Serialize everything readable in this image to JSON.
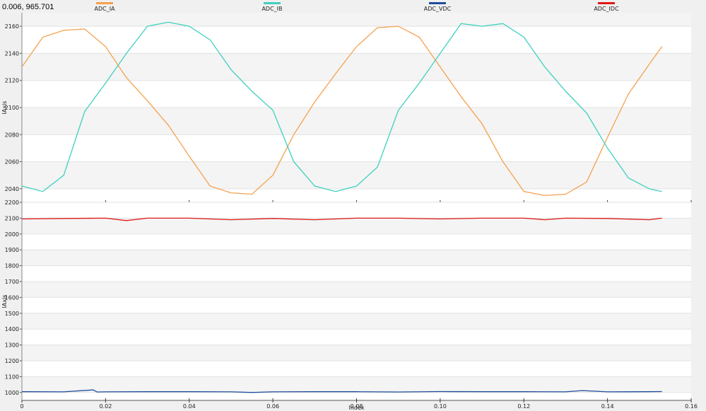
{
  "readout": "0.006, 965.701",
  "chart_data": {
    "type": "line",
    "xlabel": "Index",
    "xlim": [
      0,
      0.16
    ],
    "x_ticks": [
      "0",
      "0.02",
      "0.04",
      "0.06",
      "0.08",
      "0.10",
      "0.12",
      "0.14",
      "0.16"
    ],
    "legend_position": "top",
    "legend": [
      {
        "name": "ADC_IA",
        "color": "#f5a14e"
      },
      {
        "name": "ADC_IB",
        "color": "#3fd0c0"
      },
      {
        "name": "ADC_VDC",
        "color": "#1f4e9c"
      },
      {
        "name": "ADC_IDC",
        "color": "#e01818"
      }
    ],
    "panels": [
      {
        "ylabel": "IAxis",
        "ylim": [
          2030,
          2170
        ],
        "y_ticks": [
          2040,
          2060,
          2080,
          2100,
          2120,
          2140,
          2160
        ],
        "series": [
          {
            "name": "ADC_IA",
            "color": "#f5a14e",
            "x": [
              0,
              0.005,
              0.01,
              0.015,
              0.02,
              0.025,
              0.03,
              0.035,
              0.04,
              0.045,
              0.05,
              0.055,
              0.06,
              0.065,
              0.07,
              0.075,
              0.08,
              0.085,
              0.09,
              0.095,
              0.1,
              0.105,
              0.11,
              0.115,
              0.12,
              0.125,
              0.13,
              0.135,
              0.14,
              0.145,
              0.15,
              0.153
            ],
            "y": [
              2130,
              2152,
              2157,
              2158,
              2145,
              2122,
              2105,
              2087,
              2064,
              2042,
              2037,
              2036,
              2050,
              2080,
              2104,
              2125,
              2145,
              2159,
              2160,
              2152,
              2130,
              2108,
              2088,
              2060,
              2038,
              2035,
              2036,
              2045,
              2078,
              2110,
              2132,
              2145
            ]
          },
          {
            "name": "ADC_IB",
            "color": "#3fd0c0",
            "x": [
              0,
              0.005,
              0.01,
              0.015,
              0.02,
              0.025,
              0.03,
              0.035,
              0.04,
              0.045,
              0.05,
              0.055,
              0.06,
              0.065,
              0.07,
              0.075,
              0.08,
              0.085,
              0.09,
              0.095,
              0.1,
              0.105,
              0.11,
              0.115,
              0.12,
              0.125,
              0.13,
              0.135,
              0.14,
              0.145,
              0.15,
              0.153
            ],
            "y": [
              2042,
              2038,
              2050,
              2097,
              2118,
              2140,
              2160,
              2163,
              2160,
              2150,
              2128,
              2112,
              2098,
              2060,
              2042,
              2038,
              2042,
              2056,
              2098,
              2118,
              2140,
              2162,
              2160,
              2162,
              2152,
              2130,
              2112,
              2096,
              2070,
              2048,
              2040,
              2038
            ]
          }
        ]
      },
      {
        "ylabel": "IAxis",
        "ylim": [
          950,
          2200
        ],
        "y_ticks": [
          1000,
          1100,
          1200,
          1300,
          1400,
          1500,
          1600,
          1700,
          1800,
          1900,
          2000,
          2100,
          2200
        ],
        "series": [
          {
            "name": "ADC_IDC",
            "color": "#e01818",
            "x": [
              0,
              0.01,
              0.02,
              0.025,
              0.03,
              0.04,
              0.05,
              0.06,
              0.07,
              0.08,
              0.09,
              0.1,
              0.11,
              0.12,
              0.125,
              0.13,
              0.14,
              0.15,
              0.153
            ],
            "y": [
              2095,
              2098,
              2100,
              2085,
              2100,
              2100,
              2090,
              2098,
              2090,
              2100,
              2100,
              2095,
              2100,
              2100,
              2090,
              2100,
              2098,
              2090,
              2100
            ]
          },
          {
            "name": "ADC_VDC",
            "color": "#1f4e9c",
            "x": [
              0,
              0.01,
              0.017,
              0.018,
              0.02,
              0.03,
              0.04,
              0.05,
              0.055,
              0.06,
              0.07,
              0.08,
              0.09,
              0.1,
              0.11,
              0.12,
              0.13,
              0.134,
              0.14,
              0.15,
              0.153
            ],
            "y": [
              1005,
              1004,
              1016,
              1003,
              1004,
              1005,
              1005,
              1004,
              1000,
              1004,
              1005,
              1005,
              1003,
              1006,
              1005,
              1005,
              1004,
              1012,
              1004,
              1005,
              1006
            ]
          }
        ]
      }
    ]
  }
}
